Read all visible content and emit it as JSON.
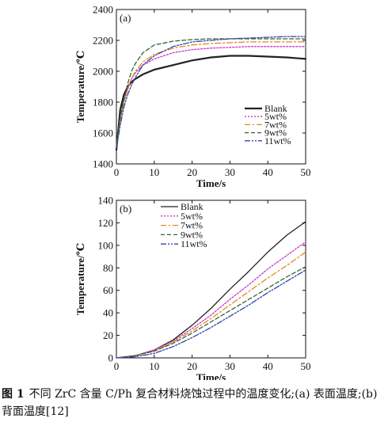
{
  "chart_data": [
    {
      "panel": "(a)",
      "type": "line",
      "xlabel": "Time/s",
      "ylabel": "Temperature/℃",
      "xlim": [
        0,
        50
      ],
      "ylim": [
        1400,
        2400
      ],
      "xticks": [
        0,
        10,
        20,
        30,
        40,
        50
      ],
      "yticks": [
        1400,
        1600,
        1800,
        2000,
        2200,
        2400
      ],
      "legend_position": "bottom-right",
      "grid": false,
      "series": [
        {
          "name": "Blank",
          "color": "#222222",
          "dash": "solid",
          "width": 2.2,
          "x": [
            0,
            1,
            2,
            3,
            4,
            5,
            7,
            10,
            15,
            20,
            25,
            30,
            35,
            40,
            45,
            50
          ],
          "y": [
            1490,
            1750,
            1850,
            1900,
            1930,
            1950,
            1980,
            2010,
            2040,
            2070,
            2090,
            2100,
            2100,
            2095,
            2090,
            2080
          ]
        },
        {
          "name": "5wt%",
          "color": "#cc33cc",
          "dash": "2 2",
          "width": 1.3,
          "x": [
            0,
            1,
            2,
            3,
            4,
            5,
            7,
            10,
            15,
            20,
            25,
            30,
            35,
            40,
            45,
            50
          ],
          "y": [
            1510,
            1690,
            1810,
            1890,
            1950,
            1990,
            2040,
            2080,
            2120,
            2140,
            2150,
            2155,
            2160,
            2160,
            2160,
            2160
          ]
        },
        {
          "name": "7wt%",
          "color": "#e08a1e",
          "dash": "7 3 2 3",
          "width": 1.3,
          "x": [
            0,
            1,
            2,
            3,
            4,
            5,
            7,
            10,
            15,
            20,
            25,
            30,
            35,
            40,
            45,
            50
          ],
          "y": [
            1510,
            1680,
            1800,
            1880,
            1950,
            2000,
            2060,
            2110,
            2150,
            2170,
            2180,
            2185,
            2190,
            2190,
            2190,
            2190
          ]
        },
        {
          "name": "9wt%",
          "color": "#336633",
          "dash": "5 3",
          "width": 1.3,
          "x": [
            0,
            1,
            2,
            3,
            4,
            5,
            7,
            10,
            15,
            20,
            25,
            30,
            35,
            40,
            45,
            50
          ],
          "y": [
            1520,
            1700,
            1820,
            1920,
            2000,
            2050,
            2120,
            2170,
            2195,
            2205,
            2210,
            2210,
            2210,
            2210,
            2210,
            2210
          ]
        },
        {
          "name": "11wt%",
          "color": "#3344aa",
          "dash": "7 2 2 2 2 2",
          "width": 1.3,
          "x": [
            0,
            1,
            2,
            3,
            4,
            5,
            7,
            10,
            15,
            20,
            25,
            30,
            35,
            40,
            45,
            50
          ],
          "y": [
            1500,
            1650,
            1770,
            1850,
            1910,
            1960,
            2040,
            2100,
            2160,
            2190,
            2200,
            2210,
            2215,
            2220,
            2225,
            2225
          ]
        }
      ]
    },
    {
      "panel": "(b)",
      "type": "line",
      "xlabel": "Time/s",
      "ylabel": "Temperature/℃",
      "xlim": [
        0,
        50
      ],
      "ylim": [
        0,
        140
      ],
      "xticks": [
        0,
        10,
        20,
        30,
        40,
        50
      ],
      "yticks": [
        0,
        20,
        40,
        60,
        80,
        100,
        120,
        140
      ],
      "legend_position": "top-left",
      "grid": false,
      "series": [
        {
          "name": "Blank",
          "color": "#222222",
          "dash": "solid",
          "width": 1.3,
          "x": [
            0,
            5,
            10,
            15,
            20,
            25,
            30,
            35,
            40,
            45,
            50
          ],
          "y": [
            0,
            2,
            7,
            16,
            29,
            44,
            61,
            77,
            94,
            109,
            121
          ]
        },
        {
          "name": "5wt%",
          "color": "#cc33cc",
          "dash": "2 2",
          "width": 1.3,
          "x": [
            0,
            5,
            10,
            15,
            20,
            25,
            30,
            35,
            40,
            45,
            50
          ],
          "y": [
            0,
            2,
            7,
            15,
            26,
            38,
            52,
            65,
            79,
            91,
            103
          ]
        },
        {
          "name": "7wt%",
          "color": "#e08a1e",
          "dash": "7 3 2 3",
          "width": 1.3,
          "x": [
            0,
            5,
            10,
            15,
            20,
            25,
            30,
            35,
            40,
            45,
            50
          ],
          "y": [
            0,
            2,
            6,
            14,
            24,
            35,
            47,
            59,
            71,
            82,
            94
          ]
        },
        {
          "name": "9wt%",
          "color": "#336633",
          "dash": "5 3",
          "width": 1.3,
          "x": [
            0,
            5,
            10,
            15,
            20,
            25,
            30,
            35,
            40,
            45,
            50
          ],
          "y": [
            0,
            2,
            6,
            13,
            22,
            32,
            42,
            52,
            62,
            72,
            81
          ]
        },
        {
          "name": "11wt%",
          "color": "#3344aa",
          "dash": "7 2 2 2 2 2",
          "width": 1.3,
          "x": [
            0,
            5,
            10,
            15,
            20,
            25,
            30,
            35,
            40,
            45,
            50
          ],
          "y": [
            0,
            1,
            4,
            10,
            18,
            27,
            37,
            47,
            58,
            68,
            78
          ]
        }
      ]
    }
  ],
  "caption": {
    "figure_number": "图 1",
    "text": "不同 ZrC 含量 C/Ph 复合材料烧蚀过程中的温度变化;(a) 表面温度;(b) 背面温度[12]"
  }
}
